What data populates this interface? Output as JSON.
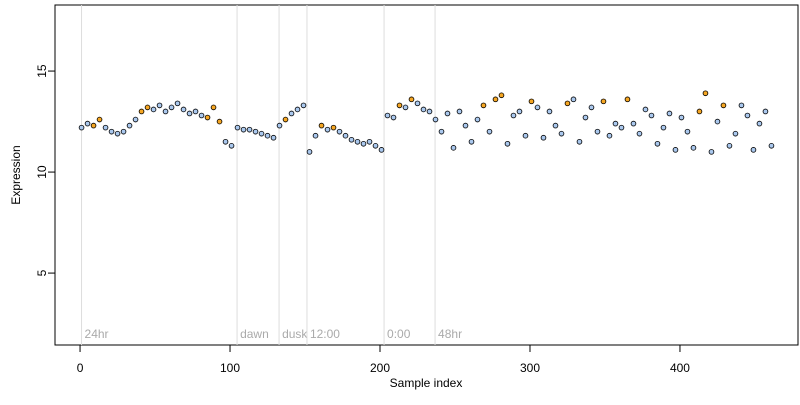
{
  "chart_data": {
    "type": "scatter",
    "xlabel": "Sample index",
    "ylabel": "Expression",
    "xlim": [
      -16.7,
      478.7
    ],
    "ylim": [
      1.44,
      18.27
    ],
    "xticks": [
      0,
      100,
      200,
      300,
      400
    ],
    "yticks": [
      5,
      10,
      15
    ],
    "series": [
      {
        "color": "#aac8ee",
        "x": [
          1,
          5,
          17,
          21,
          25,
          29,
          33,
          37,
          49,
          53,
          57,
          61,
          65,
          69,
          73,
          77,
          81,
          97,
          101,
          105,
          109,
          113,
          117,
          121,
          125,
          129,
          133,
          141,
          145,
          149,
          153,
          157,
          165,
          173,
          177,
          181,
          185,
          189,
          193,
          197,
          201,
          205,
          209,
          217,
          225,
          229,
          233,
          237,
          241,
          245,
          249,
          253,
          257,
          261,
          265,
          273,
          285,
          289,
          293,
          297,
          305,
          309,
          313,
          317,
          321,
          329,
          333,
          337,
          341,
          345,
          353,
          357,
          361,
          369,
          373,
          377,
          381,
          385,
          389,
          393,
          397,
          401,
          405,
          409,
          421,
          425,
          433,
          437,
          441,
          445,
          449,
          453,
          457,
          461
        ],
        "values": [
          12.2,
          12.4,
          12.2,
          12.0,
          11.9,
          12.0,
          12.3,
          12.6,
          13.1,
          13.3,
          13.0,
          13.2,
          13.4,
          13.1,
          12.9,
          13.0,
          12.8,
          11.5,
          11.3,
          12.2,
          12.1,
          12.1,
          12.0,
          11.9,
          11.8,
          11.7,
          12.3,
          12.9,
          13.1,
          13.3,
          11.0,
          11.8,
          12.1,
          12.0,
          11.8,
          11.6,
          11.5,
          11.4,
          11.5,
          11.3,
          11.1,
          12.8,
          12.7,
          13.2,
          13.4,
          13.1,
          13.0,
          12.6,
          12.0,
          12.9,
          11.2,
          13.0,
          12.3,
          11.5,
          12.6,
          12.0,
          11.4,
          12.8,
          13.0,
          11.8,
          13.2,
          11.7,
          13.0,
          12.3,
          11.9,
          13.6,
          11.5,
          12.7,
          13.2,
          12.0,
          11.8,
          12.4,
          12.2,
          12.4,
          11.9,
          13.1,
          12.8,
          11.4,
          12.2,
          12.9,
          11.1,
          12.7,
          12.0,
          11.2,
          11.0,
          12.5,
          11.3,
          11.9,
          13.3,
          12.8,
          11.1,
          12.4,
          13.0,
          11.3
        ]
      },
      {
        "color": "#f5a623",
        "x": [
          9,
          13,
          41,
          45,
          85,
          89,
          93,
          137,
          161,
          169,
          213,
          221,
          269,
          277,
          281,
          301,
          325,
          349,
          365,
          413,
          417,
          429
        ],
        "values": [
          12.3,
          12.6,
          13.0,
          13.2,
          12.7,
          13.2,
          12.5,
          12.6,
          12.3,
          12.2,
          13.3,
          13.6,
          13.3,
          13.6,
          13.8,
          13.5,
          13.4,
          13.5,
          13.6,
          13.0,
          13.9,
          13.3
        ]
      }
    ],
    "annotations": [
      {
        "x": 1,
        "label": "24hr"
      },
      {
        "x": 104.7,
        "label": "dawn"
      },
      {
        "x": 132.7,
        "label": "dusk"
      },
      {
        "x": 151.3,
        "label": "12:00"
      },
      {
        "x": 202.7,
        "label": "0:00"
      },
      {
        "x": 236.7,
        "label": "48hr"
      }
    ]
  }
}
